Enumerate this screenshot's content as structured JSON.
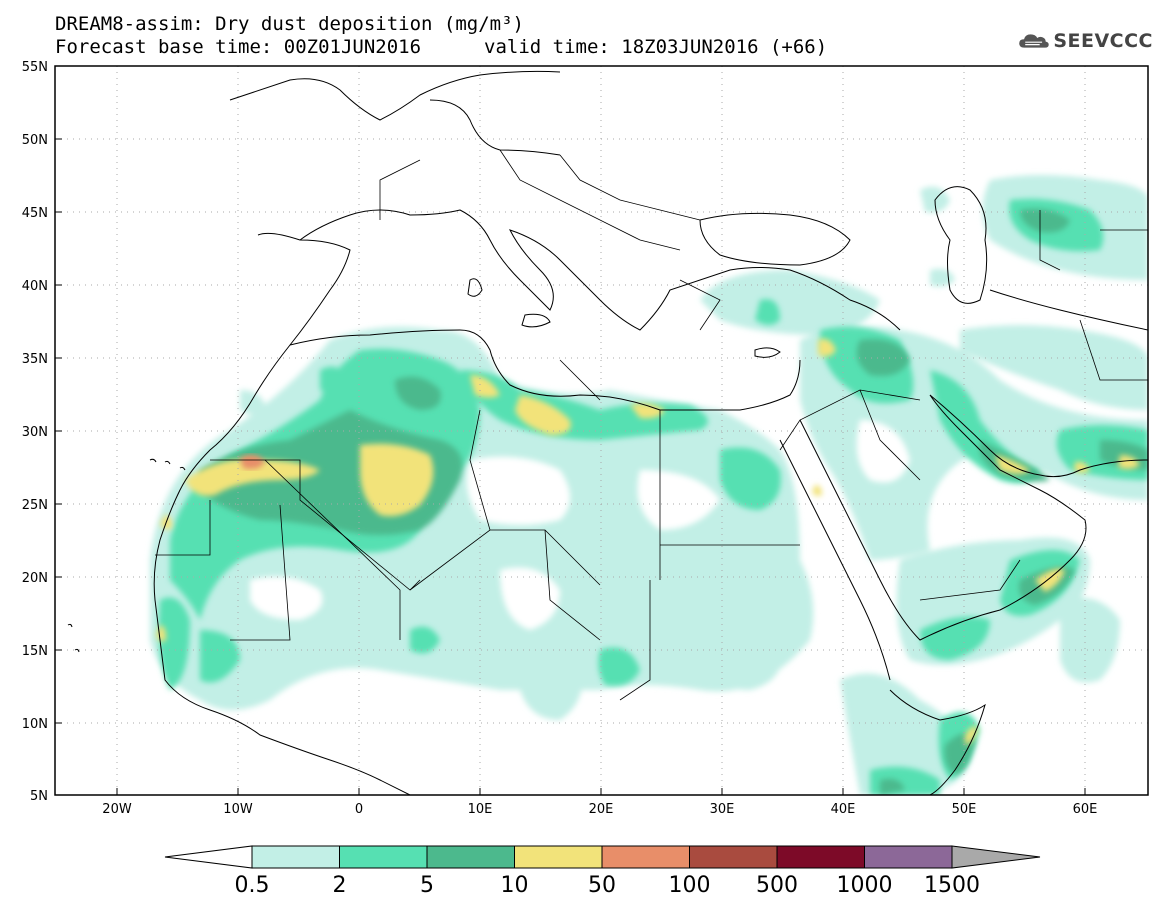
{
  "header": {
    "title_line1": "DREAM8-assim: Dry dust deposition (mg/m³)",
    "title_line2_left": "Forecast base time: 00Z01JUN2016",
    "title_line2_right": "valid time: 18Z03JUN2016 (+66)"
  },
  "logo": {
    "text": "SEEVCCC",
    "icon": "cloud-icon"
  },
  "axes": {
    "lat_labels": [
      "55N",
      "50N",
      "45N",
      "40N",
      "35N",
      "30N",
      "25N",
      "20N",
      "15N",
      "10N",
      "5N"
    ],
    "lon_labels": [
      "20W",
      "10W",
      "0",
      "10E",
      "20E",
      "30E",
      "40E",
      "50E",
      "60E"
    ]
  },
  "colorbar": {
    "labels": [
      "0.5",
      "2",
      "5",
      "10",
      "50",
      "100",
      "500",
      "1000",
      "1500"
    ],
    "colors": [
      "#c2efe6",
      "#56e0b2",
      "#4cb98d",
      "#f2e37a",
      "#e88e69",
      "#a94b3f",
      "#7d0a28",
      "#8c6898",
      "#a9a9a9"
    ]
  }
}
